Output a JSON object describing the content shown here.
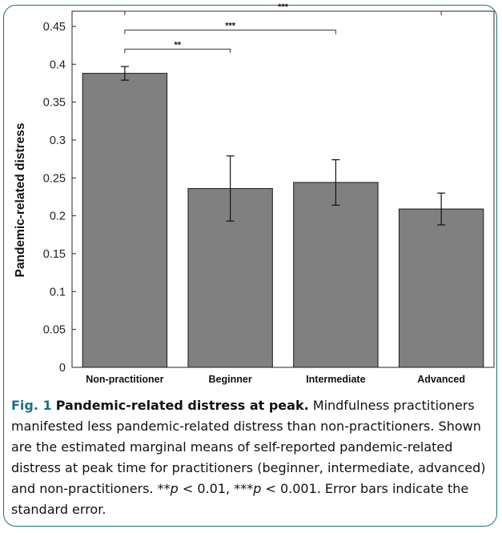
{
  "chart_data": {
    "type": "bar",
    "categories": [
      "Non-practitioner",
      "Beginner",
      "Intermediate",
      "Advanced"
    ],
    "values": [
      0.388,
      0.236,
      0.244,
      0.209
    ],
    "errors": [
      0.009,
      0.043,
      0.03,
      0.021
    ],
    "ylabel": "Pandemic-related distress",
    "ylim": [
      0,
      0.47
    ],
    "yticks": [
      0,
      0.05,
      0.1,
      0.15,
      0.2,
      0.25,
      0.3,
      0.35,
      0.4,
      0.45
    ],
    "ytick_labels": [
      "0",
      "0.05",
      "0.1",
      "0.15",
      "0.2",
      "0.25",
      "0.3",
      "0.35",
      "0.4",
      "0.45"
    ],
    "bar_color": "#808080",
    "significance": [
      {
        "from": "Non-practitioner",
        "to": "Beginner",
        "label": "**"
      },
      {
        "from": "Non-practitioner",
        "to": "Intermediate",
        "label": "***"
      },
      {
        "from": "Non-practitioner",
        "to": "Advanced",
        "label": "***"
      }
    ]
  },
  "caption": {
    "fig_label": "Fig. 1",
    "title": "Pandemic-related distress at peak.",
    "text_1": " Mindfulness practitioners manifested less pandemic-related distress than non-practitioners. Shown are the estimated marginal means of self-reported pandemic-related distress at peak time for practitioners (beginner, intermediate, advanced) and non-practitioners. **",
    "p1": "p",
    "text_2": " < 0.01, ***",
    "p2": "p",
    "text_3": " < 0.001. Error bars indicate the standard error."
  },
  "accent_color": "#1f6f86"
}
